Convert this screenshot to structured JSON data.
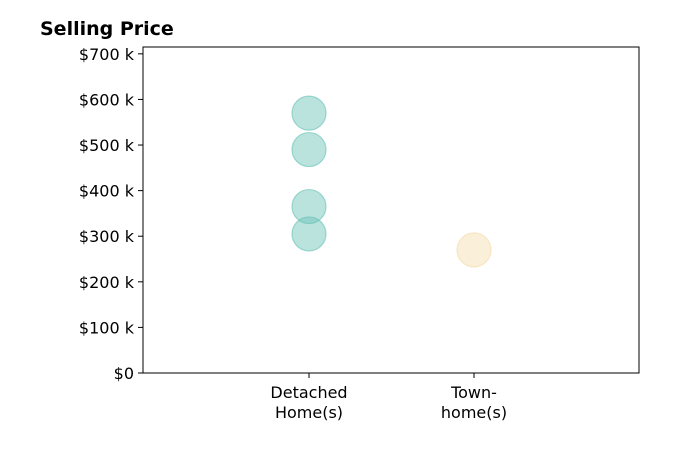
{
  "chart_data": {
    "type": "scatter",
    "title": "Selling Price",
    "xlabel": "",
    "ylabel": "",
    "categories": [
      [
        "Detached",
        "Home(s)"
      ],
      [
        "Town-",
        "home(s)"
      ]
    ],
    "ylim": [
      0,
      715000
    ],
    "yticks": [
      {
        "value": 0,
        "label": "$0"
      },
      {
        "value": 100000,
        "label": "$100 k"
      },
      {
        "value": 200000,
        "label": "$200 k"
      },
      {
        "value": 300000,
        "label": "$300 k"
      },
      {
        "value": 400000,
        "label": "$400 k"
      },
      {
        "value": 500000,
        "label": "$500 k"
      },
      {
        "value": 600000,
        "label": "$600 k"
      },
      {
        "value": 700000,
        "label": "$700 k"
      }
    ],
    "grid": false,
    "series": [
      {
        "category_index": 0,
        "color": "#66c2b5",
        "values": [
          570000,
          490000,
          365000,
          305000
        ]
      },
      {
        "category_index": 1,
        "color": "#f5dba8",
        "values": [
          270000
        ]
      }
    ]
  }
}
